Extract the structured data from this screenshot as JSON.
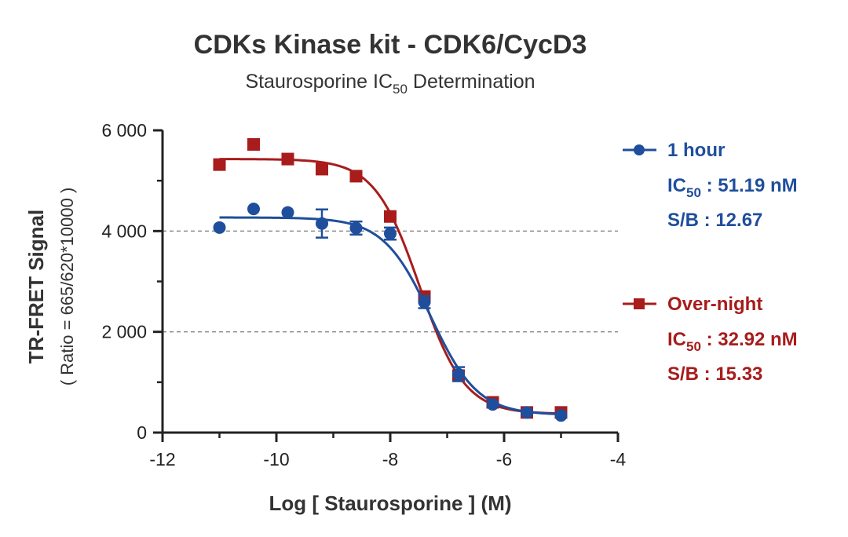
{
  "chart_data": {
    "type": "scatter",
    "title": "CDKs Kinase kit  -  CDK6/CycD3",
    "subtitle_main": "Staurosporine IC",
    "subtitle_sub": "50",
    "subtitle_tail": " Determination",
    "xlabel": "Log [ Staurosporine ]  (M)",
    "ylabel": "TR-FRET Signal",
    "ylabel_sub": "( Ratio = 665/620*10000 )",
    "xlim": [
      -12,
      -4
    ],
    "ylim": [
      0,
      6000
    ],
    "x_ticks": [
      -12,
      -10,
      -8,
      -6,
      -4
    ],
    "x_tick_labels": [
      "-12",
      "-10",
      "-8",
      "-6",
      "-4"
    ],
    "y_ticks": [
      0,
      2000,
      4000,
      6000
    ],
    "y_tick_labels": [
      "0",
      "2 000",
      "4 000",
      "6 000"
    ],
    "dashed_gridlines_y": [
      2000,
      4000
    ],
    "legend_position": "right",
    "series": [
      {
        "name": "1 hour",
        "color": "#1f4e9c",
        "marker": "circle",
        "ic50_label": "IC",
        "ic50_sub": "50",
        "ic50_value": " : 51.19 nM",
        "sb_label": "S/B : 12.67",
        "x": [
          -11.0,
          -10.4,
          -9.8,
          -9.2,
          -8.6,
          -8.0,
          -7.4,
          -6.8,
          -6.2,
          -5.6,
          -5.0
        ],
        "y": [
          4070,
          4440,
          4370,
          4150,
          4060,
          3950,
          2590,
          1160,
          560,
          400,
          340
        ],
        "error": [
          0,
          0,
          0,
          280,
          130,
          120,
          120,
          140,
          0,
          0,
          0
        ],
        "fit": {
          "top": 4270,
          "bottom": 350,
          "log_ic50": -7.291,
          "hill": -1.05
        }
      },
      {
        "name": "Over-night",
        "color": "#a81c1c",
        "marker": "square",
        "ic50_label": "IC",
        "ic50_sub": "50",
        "ic50_value": " : 32.92 nM",
        "sb_label": "S/B : 15.33",
        "x": [
          -11.0,
          -10.4,
          -9.8,
          -9.2,
          -8.6,
          -8.0,
          -7.4,
          -6.8,
          -6.2,
          -5.6,
          -5.0
        ],
        "y": [
          5320,
          5720,
          5430,
          5230,
          5090,
          4290,
          2700,
          1130,
          600,
          400,
          400
        ],
        "error": [
          0,
          0,
          0,
          0,
          0,
          80,
          60,
          0,
          0,
          0,
          0
        ],
        "fit": {
          "top": 5430,
          "bottom": 370,
          "log_ic50": -7.483,
          "hill": -1.1
        }
      }
    ]
  }
}
